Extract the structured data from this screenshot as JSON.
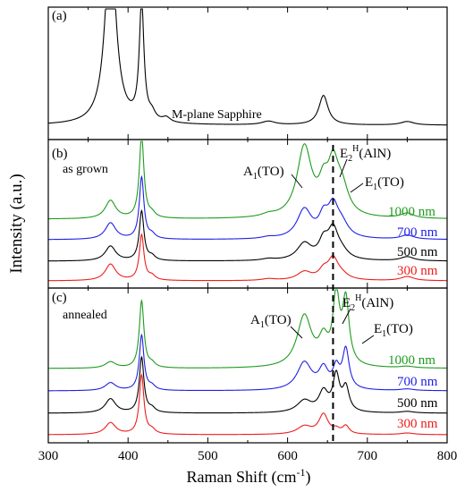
{
  "chart_data": {
    "type": "line",
    "xlabel": "Raman Shift (cm",
    "xlabel_sup": "-1",
    "xlabel_end": ")",
    "ylabel": "Intensity (a.u.)",
    "xlim": [
      300,
      800
    ],
    "x_ticks": [
      300,
      400,
      500,
      600,
      700,
      800
    ],
    "reference_line_x": 657,
    "panels": [
      {
        "label": "(a)",
        "title": "",
        "sample_label": "M-plane Sapphire",
        "series": [
          {
            "name": "M-plane Sapphire",
            "color": "#000000",
            "peaks": [
              [
                378,
                8,
                1.6
              ],
              [
                417,
                3.5,
                1.0
              ],
              [
                430,
                5,
                0.06
              ],
              [
                448,
                6,
                0.04
              ],
              [
                576,
                10,
                0.03
              ],
              [
                645,
                7,
                0.25
              ],
              [
                750,
                10,
                0.03
              ]
            ]
          }
        ]
      },
      {
        "label": "(b)",
        "title": "as grown",
        "annotations": [
          "A1(TO)",
          "E2H(AlN)",
          "E1(TO)"
        ],
        "series": [
          {
            "name": "1000 nm",
            "color": "#1e9a1e",
            "peaks": [
              [
                378,
                8,
                0.22
              ],
              [
                417,
                3.5,
                1.0
              ],
              [
                430,
                5,
                0.05
              ],
              [
                576,
                10,
                0.03
              ],
              [
                621,
                11,
                0.85
              ],
              [
                645,
                7,
                0.3
              ],
              [
                657,
                8,
                0.55
              ],
              [
                668,
                10,
                0.32
              ],
              [
                750,
                10,
                0.06
              ]
            ]
          },
          {
            "name": "700 nm",
            "color": "#1f1fe6",
            "peaks": [
              [
                378,
                8,
                0.2
              ],
              [
                417,
                3.5,
                0.75
              ],
              [
                430,
                5,
                0.05
              ],
              [
                576,
                10,
                0.02
              ],
              [
                621,
                11,
                0.35
              ],
              [
                645,
                7,
                0.22
              ],
              [
                657,
                8,
                0.35
              ],
              [
                668,
                10,
                0.15
              ],
              [
                750,
                10,
                0.05
              ]
            ]
          },
          {
            "name": "500 nm",
            "color": "#000000",
            "peaks": [
              [
                378,
                8,
                0.18
              ],
              [
                417,
                3.5,
                0.6
              ],
              [
                430,
                5,
                0.05
              ],
              [
                576,
                10,
                0.02
              ],
              [
                621,
                11,
                0.2
              ],
              [
                645,
                7,
                0.2
              ],
              [
                657,
                8,
                0.35
              ],
              [
                668,
                10,
                0.08
              ],
              [
                750,
                10,
                0.05
              ]
            ]
          },
          {
            "name": "300 nm",
            "color": "#ee1c1c",
            "peaks": [
              [
                378,
                8,
                0.2
              ],
              [
                417,
                3.5,
                0.55
              ],
              [
                430,
                5,
                0.05
              ],
              [
                576,
                10,
                0.02
              ],
              [
                621,
                11,
                0.1
              ],
              [
                645,
                7,
                0.1
              ],
              [
                657,
                8,
                0.25
              ],
              [
                668,
                10,
                0.05
              ],
              [
                750,
                10,
                0.05
              ]
            ]
          }
        ]
      },
      {
        "label": "(c)",
        "title": "annealed",
        "annotations": [
          "A1(TO)",
          "E2H(AlN)",
          "E1(TO)"
        ],
        "series": [
          {
            "name": "1000 nm",
            "color": "#1e9a1e",
            "peaks": [
              [
                378,
                8,
                0.08
              ],
              [
                417,
                3.5,
                0.85
              ],
              [
                430,
                5,
                0.05
              ],
              [
                621,
                11,
                0.65
              ],
              [
                645,
                7,
                0.3
              ],
              [
                661,
                5,
                0.85
              ],
              [
                673,
                5,
                0.8
              ],
              [
                750,
                10,
                0.02
              ]
            ]
          },
          {
            "name": "700 nm",
            "color": "#1f1fe6",
            "peaks": [
              [
                378,
                8,
                0.1
              ],
              [
                417,
                3.5,
                0.7
              ],
              [
                430,
                5,
                0.05
              ],
              [
                621,
                11,
                0.35
              ],
              [
                645,
                7,
                0.25
              ],
              [
                661,
                5,
                0.25
              ],
              [
                673,
                5,
                0.5
              ],
              [
                750,
                10,
                0.02
              ]
            ]
          },
          {
            "name": "500 nm",
            "color": "#000000",
            "peaks": [
              [
                378,
                8,
                0.18
              ],
              [
                417,
                3.5,
                0.7
              ],
              [
                430,
                5,
                0.05
              ],
              [
                621,
                11,
                0.15
              ],
              [
                645,
                7,
                0.25
              ],
              [
                661,
                5,
                0.45
              ],
              [
                673,
                5,
                0.3
              ],
              [
                750,
                10,
                0.02
              ]
            ]
          },
          {
            "name": "300 nm",
            "color": "#ee1c1c",
            "peaks": [
              [
                378,
                8,
                0.15
              ],
              [
                417,
                3.5,
                0.75
              ],
              [
                430,
                5,
                0.05
              ],
              [
                621,
                11,
                0.1
              ],
              [
                645,
                7,
                0.25
              ],
              [
                661,
                5,
                0.05
              ],
              [
                673,
                5,
                0.1
              ],
              [
                750,
                10,
                0.02
              ]
            ]
          }
        ]
      }
    ]
  }
}
